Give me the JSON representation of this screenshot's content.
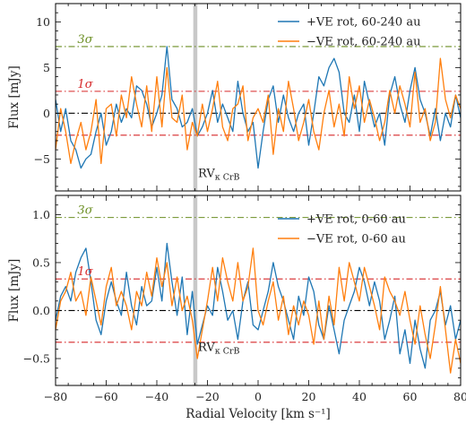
{
  "chart_data": [
    {
      "type": "line",
      "panel": "top",
      "ylabel": "Flux [mJy]",
      "xlabel": "",
      "xlim": [
        -80,
        80
      ],
      "ylim": [
        -8.5,
        12.0
      ],
      "xticks": [
        -80,
        -60,
        -40,
        -20,
        0,
        20,
        40,
        60,
        80
      ],
      "xtick_labels": [
        "",
        "",
        "",
        "",
        "",
        "",
        "",
        "",
        ""
      ],
      "yticks": [
        -5,
        0,
        5,
        10
      ],
      "ytick_labels": [
        "−5",
        "0",
        "5",
        "10"
      ],
      "legend_position": "top-right",
      "series": [
        {
          "name": "+VE rot, 60-240 au",
          "color": "#1f77b4",
          "x": [
            -80,
            -78,
            -76,
            -74,
            -72,
            -70,
            -68,
            -66,
            -64,
            -62,
            -60,
            -58,
            -56,
            -54,
            -52,
            -50,
            -48,
            -46,
            -44,
            -42,
            -40,
            -38,
            -36,
            -34,
            -32,
            -30,
            -28,
            -26,
            -24,
            -22,
            -20,
            -18,
            -16,
            -14,
            -12,
            -10,
            -8,
            -6,
            -4,
            -2,
            0,
            2,
            4,
            6,
            8,
            10,
            12,
            14,
            16,
            18,
            20,
            22,
            24,
            26,
            28,
            30,
            32,
            34,
            36,
            38,
            40,
            42,
            44,
            46,
            48,
            50,
            52,
            54,
            56,
            58,
            60,
            62,
            64,
            66,
            68,
            70,
            72,
            74,
            76,
            78,
            80
          ],
          "y": [
            1.5,
            -2.0,
            0.5,
            -3.0,
            -4.0,
            -6.0,
            -5.0,
            -4.5,
            -2.0,
            0.0,
            -3.5,
            -2.0,
            1.0,
            -1.0,
            0.5,
            -0.5,
            3.0,
            2.5,
            1.0,
            -1.5,
            0.0,
            2.0,
            7.3,
            1.5,
            0.5,
            -1.5,
            -1.0,
            0.5,
            -2.5,
            -1.5,
            0.0,
            2.5,
            -1.0,
            1.0,
            -0.5,
            -2.0,
            3.5,
            0.0,
            -2.0,
            -1.0,
            -6.0,
            -2.0,
            1.5,
            3.0,
            -1.0,
            2.0,
            -0.5,
            -2.0,
            0.0,
            1.0,
            -3.5,
            0.0,
            4.0,
            3.0,
            5.0,
            6.0,
            4.5,
            0.0,
            -1.0,
            2.0,
            -2.0,
            3.5,
            1.0,
            -1.5,
            0.0,
            -3.5,
            2.0,
            4.0,
            1.0,
            -1.0,
            2.5,
            5.0,
            1.5,
            0.0,
            -2.5,
            0.5,
            -3.0,
            0.0,
            -1.5,
            2.0,
            -0.5
          ]
        },
        {
          "name": "−VE rot, 60-240 au",
          "color": "#ff7f0e",
          "x": [
            -80,
            -78,
            -76,
            -74,
            -72,
            -70,
            -68,
            -66,
            -64,
            -62,
            -60,
            -58,
            -56,
            -54,
            -52,
            -50,
            -48,
            -46,
            -44,
            -42,
            -40,
            -38,
            -36,
            -34,
            -32,
            -30,
            -28,
            -26,
            -24,
            -22,
            -20,
            -18,
            -16,
            -14,
            -12,
            -10,
            -8,
            -6,
            -4,
            -2,
            0,
            2,
            4,
            6,
            8,
            10,
            12,
            14,
            16,
            18,
            20,
            22,
            24,
            26,
            28,
            30,
            32,
            34,
            36,
            38,
            40,
            42,
            44,
            46,
            48,
            50,
            52,
            54,
            56,
            58,
            60,
            62,
            64,
            66,
            68,
            70,
            72,
            74,
            76,
            78,
            80
          ],
          "y": [
            -4.0,
            0.5,
            -2.0,
            -5.5,
            -3.0,
            -1.0,
            -4.0,
            -2.0,
            1.5,
            -5.5,
            0.5,
            1.0,
            -2.5,
            2.0,
            -0.5,
            4.0,
            1.0,
            -1.5,
            3.0,
            -2.0,
            4.0,
            -1.5,
            5.0,
            -0.5,
            -1.0,
            2.0,
            -4.0,
            -1.0,
            -2.5,
            1.0,
            -2.0,
            0.5,
            3.5,
            -1.5,
            -3.0,
            0.5,
            1.0,
            3.0,
            -3.0,
            -0.5,
            0.5,
            -1.0,
            2.0,
            -4.5,
            0.5,
            -2.0,
            3.5,
            0.5,
            -3.0,
            -1.0,
            1.5,
            -2.0,
            -4.0,
            0.0,
            2.5,
            -1.5,
            1.0,
            -2.5,
            4.0,
            0.5,
            3.0,
            -1.0,
            1.5,
            -0.5,
            -3.0,
            -1.0,
            2.5,
            0.0,
            3.0,
            1.0,
            -1.5,
            4.5,
            -1.0,
            0.5,
            -3.0,
            -1.0,
            6.0,
            1.5,
            -0.5,
            2.0,
            0.5
          ]
        }
      ],
      "hlines": [
        {
          "y": 0,
          "color": "#000000",
          "style": "dash-dot"
        },
        {
          "y": 2.4,
          "color": "#d62728",
          "style": "dash-dot",
          "label": "1σ"
        },
        {
          "y": -2.4,
          "color": "#d62728",
          "style": "dash-dot"
        },
        {
          "y": 7.3,
          "color": "#6b8e23",
          "style": "dash-dot",
          "label": "3σ"
        }
      ],
      "vband": {
        "x0": -25.6,
        "x1": -24.0,
        "color": "#c8c8c8"
      },
      "annotation": {
        "label": "RV",
        "subscript": "κ CrB",
        "x": -23,
        "y": -7.0
      }
    },
    {
      "type": "line",
      "panel": "bottom",
      "ylabel": "Flux [mJy]",
      "xlabel": "Radial Velocity [km s⁻¹]",
      "xlim": [
        -80,
        80
      ],
      "ylim": [
        -0.78,
        1.2
      ],
      "xticks": [
        -80,
        -60,
        -40,
        -20,
        0,
        20,
        40,
        60,
        80
      ],
      "xtick_labels": [
        "−80",
        "−60",
        "−40",
        "−20",
        "0",
        "20",
        "40",
        "60",
        "80"
      ],
      "yticks": [
        -0.5,
        0.0,
        0.5,
        1.0
      ],
      "ytick_labels": [
        "−0.5",
        "0.0",
        "0.5",
        "1.0"
      ],
      "legend_position": "top-right",
      "series": [
        {
          "name": "+VE rot, 0-60 au",
          "color": "#1f77b4",
          "x": [
            -80,
            -78,
            -76,
            -74,
            -72,
            -70,
            -68,
            -66,
            -64,
            -62,
            -60,
            -58,
            -56,
            -54,
            -52,
            -50,
            -48,
            -46,
            -44,
            -42,
            -40,
            -38,
            -36,
            -34,
            -32,
            -30,
            -28,
            -26,
            -24,
            -22,
            -20,
            -18,
            -16,
            -14,
            -12,
            -10,
            -8,
            -6,
            -4,
            -2,
            0,
            2,
            4,
            6,
            8,
            10,
            12,
            14,
            16,
            18,
            20,
            22,
            24,
            26,
            28,
            30,
            32,
            34,
            36,
            38,
            40,
            42,
            44,
            46,
            48,
            50,
            52,
            54,
            56,
            58,
            60,
            62,
            64,
            66,
            68,
            70,
            72,
            74,
            76,
            78,
            80
          ],
          "y": [
            -0.1,
            0.15,
            0.25,
            0.1,
            0.4,
            0.55,
            0.65,
            0.3,
            -0.1,
            -0.25,
            0.1,
            0.3,
            0.1,
            -0.05,
            0.4,
            0.05,
            -0.15,
            0.25,
            0.05,
            0.1,
            0.45,
            0.1,
            0.7,
            0.3,
            -0.05,
            0.35,
            -0.25,
            0.2,
            -0.35,
            -0.15,
            0.05,
            -0.05,
            0.45,
            0.2,
            -0.1,
            0.0,
            -0.3,
            0.1,
            0.3,
            -0.15,
            -0.2,
            0.0,
            0.2,
            0.5,
            0.25,
            0.1,
            -0.1,
            -0.3,
            0.15,
            -0.05,
            0.35,
            0.2,
            -0.15,
            -0.3,
            0.05,
            -0.2,
            -0.45,
            -0.1,
            0.05,
            0.2,
            0.45,
            0.3,
            0.05,
            0.3,
            0.1,
            -0.3,
            -0.1,
            0.15,
            -0.45,
            -0.2,
            -0.55,
            -0.1,
            -0.4,
            -0.6,
            -0.1,
            0.0,
            0.2,
            -0.15,
            0.05,
            -0.3,
            -0.1
          ]
        },
        {
          "name": "−VE rot, 0-60 au",
          "color": "#ff7f0e",
          "x": [
            -80,
            -78,
            -76,
            -74,
            -72,
            -70,
            -68,
            -66,
            -64,
            -62,
            -60,
            -58,
            -56,
            -54,
            -52,
            -50,
            -48,
            -46,
            -44,
            -42,
            -40,
            -38,
            -36,
            -34,
            -32,
            -30,
            -28,
            -26,
            -24,
            -22,
            -20,
            -18,
            -16,
            -14,
            -12,
            -10,
            -8,
            -6,
            -4,
            -2,
            0,
            2,
            4,
            6,
            8,
            10,
            12,
            14,
            16,
            18,
            20,
            22,
            24,
            26,
            28,
            30,
            32,
            34,
            36,
            38,
            40,
            42,
            44,
            46,
            48,
            50,
            52,
            54,
            56,
            58,
            60,
            62,
            64,
            66,
            68,
            70,
            72,
            74,
            76,
            78,
            80
          ],
          "y": [
            -0.2,
            0.1,
            0.2,
            0.4,
            0.1,
            0.2,
            -0.05,
            0.35,
            0.1,
            -0.15,
            0.25,
            0.45,
            0.05,
            0.2,
            0.05,
            -0.2,
            0.2,
            0.05,
            0.4,
            0.15,
            0.55,
            0.25,
            0.5,
            0.05,
            0.35,
            0.0,
            0.15,
            -0.1,
            -0.5,
            -0.2,
            0.1,
            0.45,
            0.1,
            0.55,
            0.3,
            0.1,
            0.5,
            0.1,
            0.25,
            0.65,
            0.0,
            -0.15,
            0.1,
            0.3,
            -0.1,
            0.15,
            -0.25,
            0.05,
            -0.15,
            0.1,
            -0.05,
            -0.35,
            0.1,
            -0.3,
            0.15,
            -0.15,
            0.45,
            0.1,
            0.5,
            0.3,
            0.1,
            0.45,
            0.25,
            0.05,
            -0.2,
            0.35,
            0.2,
            0.1,
            -0.05,
            0.2,
            -0.1,
            -0.35,
            0.05,
            -0.25,
            -0.5,
            -0.15,
            0.25,
            -0.2,
            -0.65,
            -0.3,
            -0.55
          ]
        }
      ],
      "hlines": [
        {
          "y": 0,
          "color": "#000000",
          "style": "dash-dot"
        },
        {
          "y": 0.33,
          "color": "#d62728",
          "style": "dash-dot",
          "label": "1σ"
        },
        {
          "y": -0.33,
          "color": "#d62728",
          "style": "dash-dot"
        },
        {
          "y": 0.97,
          "color": "#6b8e23",
          "style": "dash-dot",
          "label": "3σ"
        }
      ],
      "vband": {
        "x0": -25.6,
        "x1": -24.0,
        "color": "#c8c8c8"
      },
      "annotation": {
        "label": "RV",
        "subscript": "κ CrB",
        "x": -23,
        "y": -0.42
      }
    }
  ]
}
